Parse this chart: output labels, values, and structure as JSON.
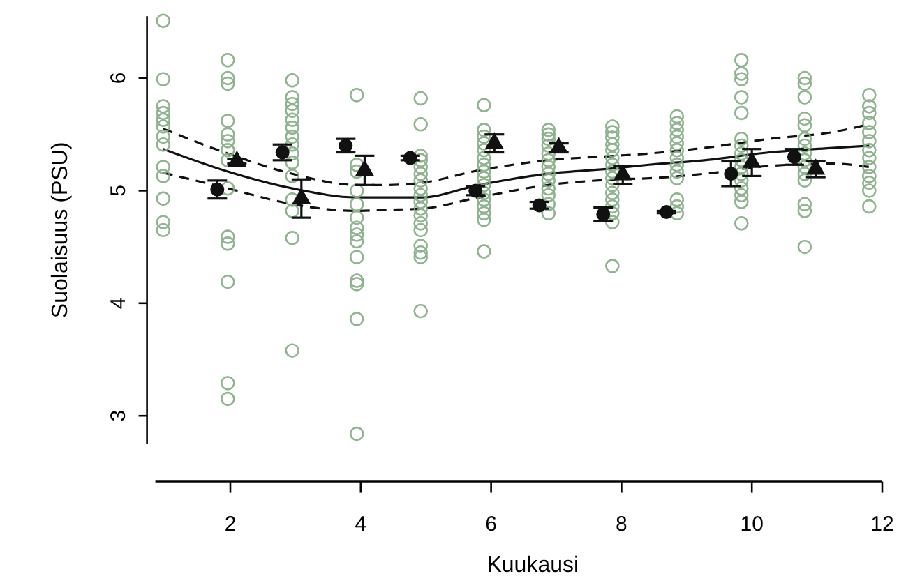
{
  "chart_data": {
    "type": "scatter",
    "xlabel": "Kuukausi",
    "ylabel": "Suolaisuus (PSU)",
    "xlim": [
      0.85,
      12
    ],
    "ylim": [
      2.75,
      6.55
    ],
    "xticks": [
      2,
      4,
      6,
      8,
      10,
      12
    ],
    "yticks": [
      3,
      4,
      5,
      6
    ],
    "grid": false,
    "series": [
      {
        "marker": "circle",
        "color": "#8db38d",
        "x": [
          0.97,
          0.97,
          0.97,
          0.97,
          0.97,
          0.97,
          0.97,
          0.97,
          0.97,
          0.97,
          0.97,
          0.97,
          0.97,
          1.96,
          1.96,
          1.96,
          1.96,
          1.96,
          1.96,
          1.96,
          1.96,
          1.96,
          1.96,
          1.96,
          1.96,
          1.96,
          1.96,
          2.95,
          2.95,
          2.95,
          2.95,
          2.95,
          2.95,
          2.95,
          2.95,
          2.95,
          2.95,
          2.95,
          2.95,
          2.95,
          2.95,
          2.95,
          3.94,
          3.94,
          3.94,
          3.94,
          3.94,
          3.94,
          3.94,
          3.94,
          3.94,
          3.94,
          3.94,
          3.94,
          3.94,
          3.94,
          4.92,
          4.92,
          4.92,
          4.92,
          4.92,
          4.92,
          4.92,
          4.92,
          4.92,
          4.92,
          4.92,
          4.92,
          4.92,
          4.92,
          4.92,
          4.92,
          4.92,
          4.92,
          5.89,
          5.89,
          5.89,
          5.89,
          5.89,
          5.89,
          5.89,
          5.89,
          5.89,
          5.89,
          5.89,
          5.89,
          5.89,
          5.89,
          5.89,
          5.89,
          6.88,
          6.88,
          6.88,
          6.88,
          6.88,
          6.88,
          6.88,
          6.88,
          6.88,
          6.88,
          6.88,
          6.88,
          6.88,
          7.86,
          7.86,
          7.86,
          7.86,
          7.86,
          7.86,
          7.86,
          7.86,
          7.86,
          7.86,
          7.86,
          7.86,
          7.86,
          7.86,
          7.86,
          7.86,
          8.85,
          8.85,
          8.85,
          8.85,
          8.85,
          8.85,
          8.85,
          8.85,
          8.85,
          8.85,
          8.85,
          8.85,
          8.85,
          9.84,
          9.84,
          9.84,
          9.84,
          9.84,
          9.84,
          9.84,
          9.84,
          9.84,
          9.84,
          9.84,
          9.84,
          9.84,
          9.84,
          9.84,
          9.84,
          10.81,
          10.81,
          10.81,
          10.81,
          10.81,
          10.81,
          10.81,
          10.81,
          10.81,
          10.81,
          10.81,
          10.81,
          10.81,
          10.81,
          10.81,
          11.8,
          11.8,
          11.8,
          11.8,
          11.8,
          11.8,
          11.8,
          11.8,
          11.8,
          11.8,
          11.8,
          11.8,
          11.8
        ],
        "values": [
          6.51,
          5.99,
          5.75,
          5.69,
          5.63,
          5.57,
          5.48,
          5.41,
          5.21,
          5.13,
          4.93,
          4.72,
          4.65,
          6.16,
          6.0,
          5.95,
          5.62,
          5.5,
          5.44,
          5.36,
          5.27,
          5.02,
          4.59,
          4.53,
          4.19,
          3.29,
          3.15,
          5.98,
          5.83,
          5.77,
          5.71,
          5.63,
          5.56,
          5.48,
          5.41,
          5.33,
          5.25,
          5.13,
          4.92,
          4.82,
          4.58,
          3.58,
          5.85,
          5.23,
          5.17,
          5.0,
          4.88,
          4.76,
          4.67,
          4.61,
          4.55,
          4.41,
          4.2,
          4.17,
          3.86,
          2.84,
          5.82,
          5.59,
          5.31,
          5.27,
          5.21,
          5.15,
          5.09,
          5.02,
          4.96,
          4.9,
          4.84,
          4.78,
          4.71,
          4.65,
          4.51,
          4.45,
          4.41,
          3.93,
          5.76,
          5.54,
          5.48,
          5.42,
          5.36,
          5.29,
          5.23,
          5.17,
          5.11,
          5.05,
          4.98,
          4.92,
          4.86,
          4.8,
          4.74,
          4.46,
          5.54,
          5.5,
          5.46,
          5.4,
          5.33,
          5.27,
          5.21,
          5.15,
          5.09,
          5.02,
          4.96,
          4.88,
          4.8,
          5.57,
          5.52,
          5.47,
          5.41,
          5.36,
          5.29,
          5.23,
          5.17,
          5.11,
          5.05,
          4.98,
          4.92,
          4.86,
          4.8,
          4.72,
          4.33,
          5.66,
          5.6,
          5.54,
          5.48,
          5.42,
          5.36,
          5.29,
          5.23,
          5.17,
          5.11,
          4.92,
          4.86,
          4.8,
          6.16,
          6.04,
          5.99,
          5.83,
          5.69,
          5.46,
          5.4,
          5.33,
          5.27,
          5.21,
          5.15,
          5.09,
          5.02,
          4.96,
          4.9,
          4.71,
          6.0,
          5.95,
          5.83,
          5.64,
          5.58,
          5.46,
          5.4,
          5.33,
          5.27,
          5.21,
          5.15,
          5.09,
          4.88,
          4.82,
          4.5,
          5.85,
          5.75,
          5.69,
          5.6,
          5.52,
          5.44,
          5.36,
          5.29,
          5.21,
          5.13,
          5.07,
          5.0,
          4.86
        ]
      },
      {
        "marker": "circle",
        "color": "#111111",
        "x": [
          1.8,
          2.8,
          3.77,
          4.76,
          5.76,
          6.74,
          7.72,
          8.69,
          9.68,
          10.65
        ],
        "values": [
          5.01,
          5.34,
          5.4,
          5.29,
          5.0,
          4.87,
          4.79,
          4.81,
          5.15,
          5.3
        ],
        "errors": [
          0.08,
          0.07,
          0.06,
          0.02,
          0.04,
          0.03,
          0.06,
          0.01,
          0.11,
          0.07
        ]
      },
      {
        "marker": "triangle",
        "color": "#111111",
        "x": [
          2.1,
          3.09,
          4.06,
          6.05,
          7.04,
          8.02,
          10.0,
          10.98
        ],
        "values": [
          5.26,
          4.93,
          5.18,
          5.42,
          5.38,
          5.14,
          5.25,
          5.19
        ],
        "errors": [
          0.02,
          0.17,
          0.13,
          0.08,
          0.04,
          0.08,
          0.12,
          0.07
        ]
      },
      {
        "type": "line",
        "line_style": "solid",
        "color": "#111111",
        "x": [
          0.97,
          1.96,
          2.95,
          3.94,
          4.4,
          4.93,
          5.81,
          6.87,
          7.92,
          8.42,
          9.27,
          10.27,
          11.24,
          11.8
        ],
        "values": [
          5.37,
          5.17,
          5.02,
          4.94,
          4.94,
          4.94,
          5.05,
          5.15,
          5.2,
          5.23,
          5.27,
          5.34,
          5.38,
          5.4
        ]
      },
      {
        "type": "line",
        "line_style": "dashed",
        "color": "#111111",
        "x": [
          0.97,
          1.96,
          2.95,
          3.94,
          4.4,
          4.93,
          5.81,
          6.87,
          7.92,
          8.42,
          9.27,
          10.27,
          11.24,
          11.8
        ],
        "values": [
          5.55,
          5.33,
          5.15,
          5.05,
          5.05,
          5.07,
          5.18,
          5.27,
          5.31,
          5.33,
          5.38,
          5.46,
          5.52,
          5.59
        ]
      },
      {
        "type": "line",
        "line_style": "dashed",
        "color": "#111111",
        "x": [
          0.97,
          1.96,
          2.95,
          3.94,
          4.4,
          4.93,
          5.81,
          6.87,
          7.92,
          8.42,
          9.27,
          10.27,
          11.24,
          11.8
        ],
        "values": [
          5.16,
          5.02,
          4.88,
          4.82,
          4.83,
          4.84,
          4.94,
          5.05,
          5.1,
          5.11,
          5.15,
          5.22,
          5.24,
          5.21
        ]
      }
    ]
  }
}
